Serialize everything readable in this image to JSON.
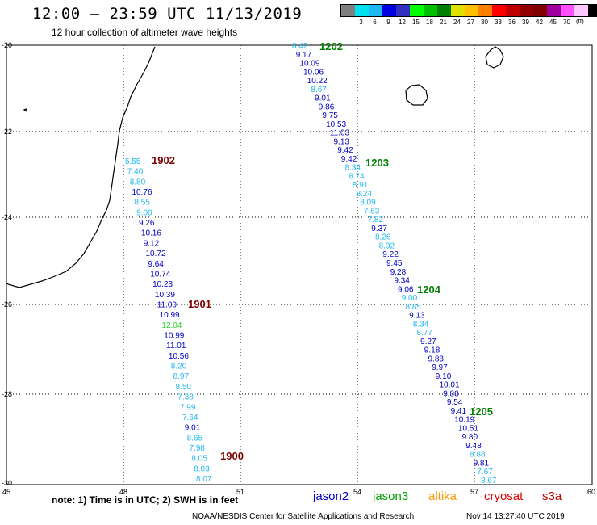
{
  "header": {
    "title": "12:00 — 23:59 UTC 11/13/2019",
    "subtitle": "12 hour collection of altimeter wave heights"
  },
  "legend": {
    "colors": [
      "#7f7f7f",
      "#00e0f0",
      "#20b8f0",
      "#0000e0",
      "#3030c0",
      "#00ff00",
      "#00c000",
      "#008000",
      "#e0e000",
      "#ffc000",
      "#ff8000",
      "#ff0000",
      "#c00000",
      "#900000",
      "#800000",
      "#a000a0",
      "#ff50ff",
      "#ffc8ff",
      "#000000"
    ],
    "labels": [
      "",
      "3",
      "6",
      "9",
      "12",
      "15",
      "18",
      "21",
      "24",
      "27",
      "30",
      "33",
      "36",
      "39",
      "42",
      "45",
      "70",
      "",
      ""
    ],
    "unit": "(ft)"
  },
  "map": {
    "lon_ticks": [
      "45",
      "48",
      "51",
      "54",
      "57",
      "60"
    ],
    "lat_ticks": [
      "-20",
      "-22",
      "-24",
      "-26",
      "-28",
      "-30"
    ],
    "time_labels": [
      {
        "text": "1202",
        "color": "#008000"
      },
      {
        "text": "1203",
        "color": "#008000"
      },
      {
        "text": "1204",
        "color": "#008000"
      },
      {
        "text": "1205",
        "color": "#008000"
      },
      {
        "text": "1902",
        "color": "#800000"
      },
      {
        "text": "1901",
        "color": "#800000"
      },
      {
        "text": "1900",
        "color": "#800000"
      }
    ],
    "track_west": [
      {
        "v": "5.55",
        "c": "#20b8f0"
      },
      {
        "v": "7.40",
        "c": "#20b8f0"
      },
      {
        "v": "8.80",
        "c": "#20b8f0"
      },
      {
        "v": "10.76",
        "c": "#0000c0"
      },
      {
        "v": "8.55",
        "c": "#20b8f0"
      },
      {
        "v": "9.00",
        "c": "#20b8f0"
      },
      {
        "v": "9.26",
        "c": "#0000c0"
      },
      {
        "v": "10.16",
        "c": "#0000c0"
      },
      {
        "v": "9.12",
        "c": "#0000c0"
      },
      {
        "v": "10.72",
        "c": "#0000c0"
      },
      {
        "v": "9.64",
        "c": "#0000c0"
      },
      {
        "v": "10.74",
        "c": "#0000c0"
      },
      {
        "v": "10.23",
        "c": "#0000c0"
      },
      {
        "v": "10.39",
        "c": "#0000c0"
      },
      {
        "v": "11.00",
        "c": "#0000c0"
      },
      {
        "v": "10.99",
        "c": "#0000c0"
      },
      {
        "v": "12.04",
        "c": "#30d030"
      },
      {
        "v": "10.99",
        "c": "#0000c0"
      },
      {
        "v": "11.01",
        "c": "#0000c0"
      },
      {
        "v": "10.56",
        "c": "#0000c0"
      },
      {
        "v": "8.20",
        "c": "#20b8f0"
      },
      {
        "v": "8.97",
        "c": "#20b8f0"
      },
      {
        "v": "8.50",
        "c": "#20b8f0"
      },
      {
        "v": "7.38",
        "c": "#20b8f0"
      },
      {
        "v": "7.99",
        "c": "#20b8f0"
      },
      {
        "v": "7.64",
        "c": "#20b8f0"
      },
      {
        "v": "9.01",
        "c": "#0000c0"
      },
      {
        "v": "8.65",
        "c": "#20b8f0"
      },
      {
        "v": "7.98",
        "c": "#20b8f0"
      },
      {
        "v": "8.05",
        "c": "#20b8f0"
      },
      {
        "v": "8.03",
        "c": "#20b8f0"
      },
      {
        "v": "8.07",
        "c": "#20b8f0"
      }
    ],
    "track_east": [
      {
        "v": "8.42",
        "c": "#20b8f0"
      },
      {
        "v": "9.17",
        "c": "#0000c0"
      },
      {
        "v": "10.09",
        "c": "#0000c0"
      },
      {
        "v": "10.06",
        "c": "#0000c0"
      },
      {
        "v": "10.22",
        "c": "#0000c0"
      },
      {
        "v": "8.67",
        "c": "#20b8f0"
      },
      {
        "v": "9.01",
        "c": "#0000c0"
      },
      {
        "v": "9.86",
        "c": "#0000c0"
      },
      {
        "v": "9.75",
        "c": "#0000c0"
      },
      {
        "v": "10.53",
        "c": "#0000c0"
      },
      {
        "v": "11.03",
        "c": "#0000c0"
      },
      {
        "v": "9.13",
        "c": "#0000c0"
      },
      {
        "v": "9.42",
        "c": "#0000c0"
      },
      {
        "v": "9.42",
        "c": "#0000c0"
      },
      {
        "v": "8.34",
        "c": "#20b8f0"
      },
      {
        "v": "8.74",
        "c": "#20b8f0"
      },
      {
        "v": "8.91",
        "c": "#20b8f0"
      },
      {
        "v": "8.24",
        "c": "#20b8f0"
      },
      {
        "v": "8.09",
        "c": "#20b8f0"
      },
      {
        "v": "7.63",
        "c": "#20b8f0"
      },
      {
        "v": "7.82",
        "c": "#20b8f0"
      },
      {
        "v": "9.37",
        "c": "#0000c0"
      },
      {
        "v": "8.26",
        "c": "#20b8f0"
      },
      {
        "v": "8.92",
        "c": "#20b8f0"
      },
      {
        "v": "9.22",
        "c": "#0000c0"
      },
      {
        "v": "9.45",
        "c": "#0000c0"
      },
      {
        "v": "9.28",
        "c": "#0000c0"
      },
      {
        "v": "9.34",
        "c": "#0000c0"
      },
      {
        "v": "9.06",
        "c": "#0000c0"
      },
      {
        "v": "9.00",
        "c": "#20b8f0"
      },
      {
        "v": "8.85",
        "c": "#20b8f0"
      },
      {
        "v": "9.13",
        "c": "#0000c0"
      },
      {
        "v": "8.34",
        "c": "#20b8f0"
      },
      {
        "v": "8.77",
        "c": "#20b8f0"
      },
      {
        "v": "9.27",
        "c": "#0000c0"
      },
      {
        "v": "9.18",
        "c": "#0000c0"
      },
      {
        "v": "9.83",
        "c": "#0000c0"
      },
      {
        "v": "9.97",
        "c": "#0000c0"
      },
      {
        "v": "9.10",
        "c": "#0000c0"
      },
      {
        "v": "10.01",
        "c": "#0000c0"
      },
      {
        "v": "9.80",
        "c": "#0000c0"
      },
      {
        "v": "9.54",
        "c": "#0000c0"
      },
      {
        "v": "9.41",
        "c": "#0000c0"
      },
      {
        "v": "10.19",
        "c": "#0000c0"
      },
      {
        "v": "10.51",
        "c": "#0000c0"
      },
      {
        "v": "9.80",
        "c": "#0000c0"
      },
      {
        "v": "9.48",
        "c": "#0000c0"
      },
      {
        "v": "8.88",
        "c": "#20b8f0"
      },
      {
        "v": "9.81",
        "c": "#0000c0"
      },
      {
        "v": "7.67",
        "c": "#20b8f0"
      },
      {
        "v": "8.67",
        "c": "#20b8f0"
      }
    ]
  },
  "footer": {
    "note": "note: 1) Time is in UTC; 2) SWH is in feet",
    "satellites": [
      {
        "name": "jason2",
        "color": "#0000c8"
      },
      {
        "name": "jason3",
        "color": "#00a000"
      },
      {
        "name": "altika",
        "color": "#ff9900"
      },
      {
        "name": "cryosat",
        "color": "#e00000"
      },
      {
        "name": "s3a",
        "color": "#c00000"
      }
    ],
    "credit": "NOAA/NESDIS Center for Satellite Applications and Research",
    "timestamp": "Nov 14 13:27:40 UTC 2019"
  }
}
